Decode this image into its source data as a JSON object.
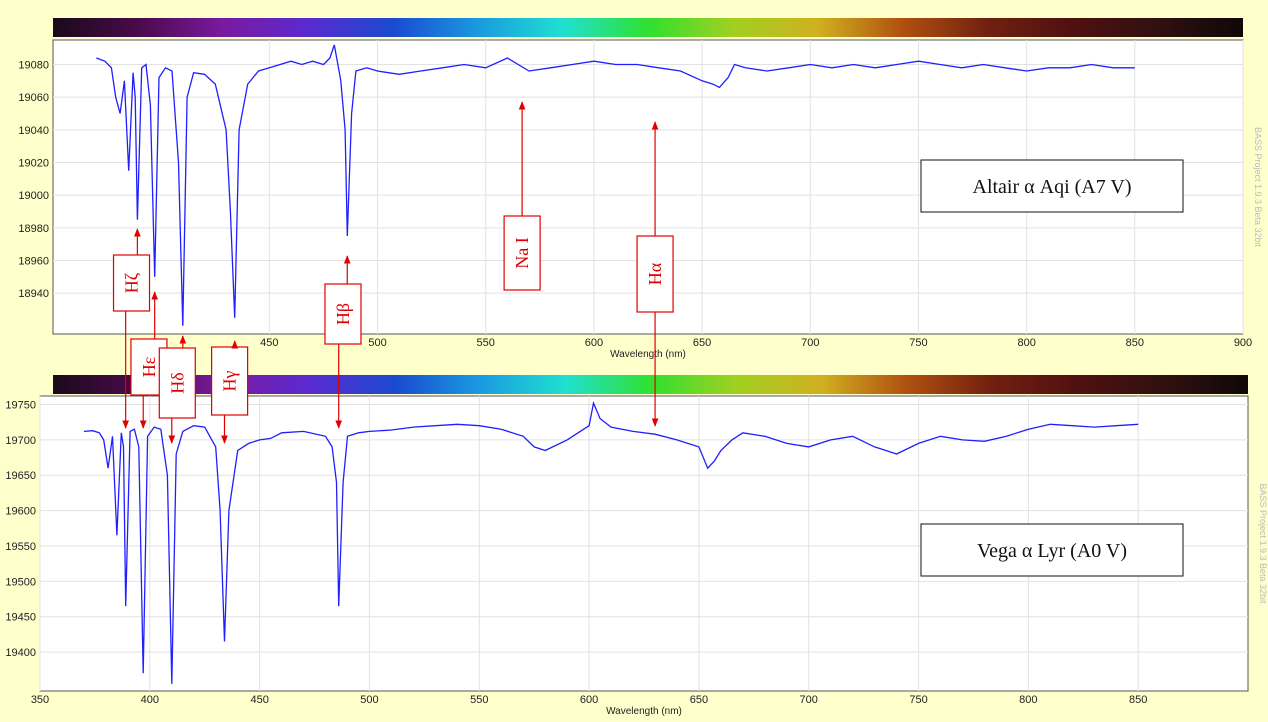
{
  "theme": {
    "page_bg": "#FFFFCC",
    "plot_bg": "#FFFFFF",
    "line_color": "#1F1FFF",
    "annotation_color": "#E00000",
    "grid_color": "#E2E2E2"
  },
  "spectrum_bar": {
    "stops": [
      "#1a0a1a",
      "#4a0a4a",
      "#7a1aa0",
      "#5a2ad0",
      "#1a4ad0",
      "#1a9ae0",
      "#20e0d0",
      "#30e030",
      "#a0d020",
      "#d0b020",
      "#b05010",
      "#702010",
      "#501010",
      "#301010",
      "#100808"
    ]
  },
  "watermark": "BASS Project 1.9.3 Beta 32bit",
  "chart_data": [
    {
      "type": "line",
      "id": "altair",
      "title": "Altair α Aqi (A7 V)",
      "xlabel": "Wavelength (nm)",
      "ylabel": "",
      "xlim": [
        350,
        900
      ],
      "ylim": [
        18915,
        19095
      ],
      "x_ticks": [
        450,
        500,
        550,
        600,
        650,
        700,
        750,
        800,
        850,
        900
      ],
      "x_tick_labels": [
        "450",
        "500",
        "550",
        "600",
        "650",
        "700",
        "750",
        "800",
        "850",
        "900"
      ],
      "y_ticks": [
        18940,
        18960,
        18980,
        19000,
        19020,
        19040,
        19060,
        19080
      ],
      "y_tick_labels": [
        "18940",
        "18960",
        "18980",
        "19000",
        "19020",
        "19040",
        "19060",
        "19080"
      ],
      "grid": true,
      "series": [
        {
          "x": [
            370,
            374,
            377,
            379,
            381,
            383,
            385,
            387,
            388,
            389,
            391,
            393,
            395,
            397,
            399,
            402,
            405,
            408,
            410,
            412,
            415,
            420,
            425,
            430,
            432,
            434,
            436,
            440,
            445,
            450,
            455,
            460,
            465,
            470,
            475,
            478,
            480,
            483,
            485,
            486,
            488,
            490,
            495,
            500,
            510,
            520,
            530,
            540,
            550,
            560,
            570,
            580,
            590,
            600,
            610,
            620,
            630,
            640,
            650,
            655,
            658,
            662,
            665,
            670,
            680,
            690,
            700,
            710,
            720,
            730,
            740,
            750,
            760,
            770,
            780,
            790,
            800,
            810,
            820,
            830,
            840,
            850
          ],
          "y": [
            19084,
            19082,
            19078,
            19060,
            19050,
            19070,
            19015,
            19075,
            19060,
            18985,
            19078,
            19080,
            19055,
            18950,
            19072,
            19078,
            19076,
            19020,
            18920,
            19060,
            19075,
            19074,
            19068,
            19040,
            18990,
            18925,
            19040,
            19068,
            19076,
            19078,
            19080,
            19082,
            19080,
            19082,
            19080,
            19084,
            19092,
            19070,
            19040,
            18975,
            19050,
            19076,
            19078,
            19076,
            19074,
            19076,
            19078,
            19080,
            19078,
            19084,
            19076,
            19078,
            19080,
            19082,
            19080,
            19080,
            19078,
            19076,
            19070,
            19068,
            19066,
            19072,
            19080,
            19078,
            19076,
            19078,
            19080,
            19078,
            19080,
            19078,
            19080,
            19082,
            19080,
            19078,
            19080,
            19078,
            19076,
            19078,
            19078,
            19080,
            19078,
            19078
          ]
        }
      ],
      "annotations": [
        {
          "text": "Na I",
          "x": 589,
          "y": 19055
        },
        {
          "text": "Hα",
          "x": 656,
          "y": 19055
        }
      ]
    },
    {
      "type": "line",
      "id": "vega",
      "title": "Vega α Lyr (A0 V)",
      "xlabel": "Wavelength (nm)",
      "ylabel": "",
      "xlim": [
        350,
        900
      ],
      "ylim": [
        19345,
        19762
      ],
      "x_ticks": [
        350,
        400,
        450,
        500,
        550,
        600,
        650,
        700,
        750,
        800,
        850
      ],
      "x_tick_labels": [
        "350",
        "400",
        "450",
        "500",
        "550",
        "600",
        "650",
        "700",
        "750",
        "800",
        "850"
      ],
      "y_ticks": [
        19400,
        19450,
        19500,
        19550,
        19600,
        19650,
        19700,
        19750
      ],
      "y_tick_labels": [
        "19400",
        "19450",
        "19500",
        "19550",
        "19600",
        "19650",
        "19700",
        "19750"
      ],
      "grid": true,
      "series": [
        {
          "x": [
            370,
            374,
            377,
            379,
            381,
            383,
            385,
            387,
            388,
            389,
            391,
            393,
            395,
            397,
            399,
            402,
            405,
            408,
            410,
            412,
            415,
            420,
            425,
            430,
            432,
            434,
            436,
            440,
            445,
            450,
            455,
            460,
            470,
            480,
            483,
            485,
            486,
            488,
            490,
            495,
            500,
            510,
            520,
            530,
            540,
            550,
            560,
            570,
            575,
            580,
            590,
            595,
            600,
            602,
            605,
            610,
            620,
            630,
            640,
            650,
            654,
            657,
            660,
            665,
            670,
            680,
            690,
            700,
            710,
            720,
            730,
            740,
            750,
            760,
            770,
            780,
            790,
            800,
            810,
            820,
            830,
            840,
            850
          ],
          "y": [
            19712,
            19713,
            19710,
            19700,
            19660,
            19705,
            19565,
            19710,
            19690,
            19465,
            19712,
            19715,
            19690,
            19370,
            19705,
            19718,
            19715,
            19650,
            19355,
            19680,
            19712,
            19720,
            19718,
            19690,
            19600,
            19415,
            19600,
            19685,
            19695,
            19700,
            19702,
            19710,
            19712,
            19705,
            19690,
            19640,
            19465,
            19640,
            19705,
            19710,
            19712,
            19714,
            19718,
            19720,
            19722,
            19720,
            19715,
            19705,
            19690,
            19685,
            19700,
            19710,
            19720,
            19752,
            19730,
            19718,
            19712,
            19708,
            19700,
            19690,
            19660,
            19670,
            19685,
            19700,
            19710,
            19705,
            19695,
            19690,
            19700,
            19705,
            19690,
            19680,
            19695,
            19705,
            19700,
            19698,
            19705,
            19715,
            19722,
            19720,
            19718,
            19720,
            19722
          ]
        }
      ],
      "annotations": []
    }
  ],
  "line_labels": [
    {
      "text": "Hζ",
      "x": 389
    },
    {
      "text": "Hε",
      "x": 397
    },
    {
      "text": "Hδ",
      "x": 410
    },
    {
      "text": "Hγ",
      "x": 434
    },
    {
      "text": "Hβ",
      "x": 486
    }
  ]
}
